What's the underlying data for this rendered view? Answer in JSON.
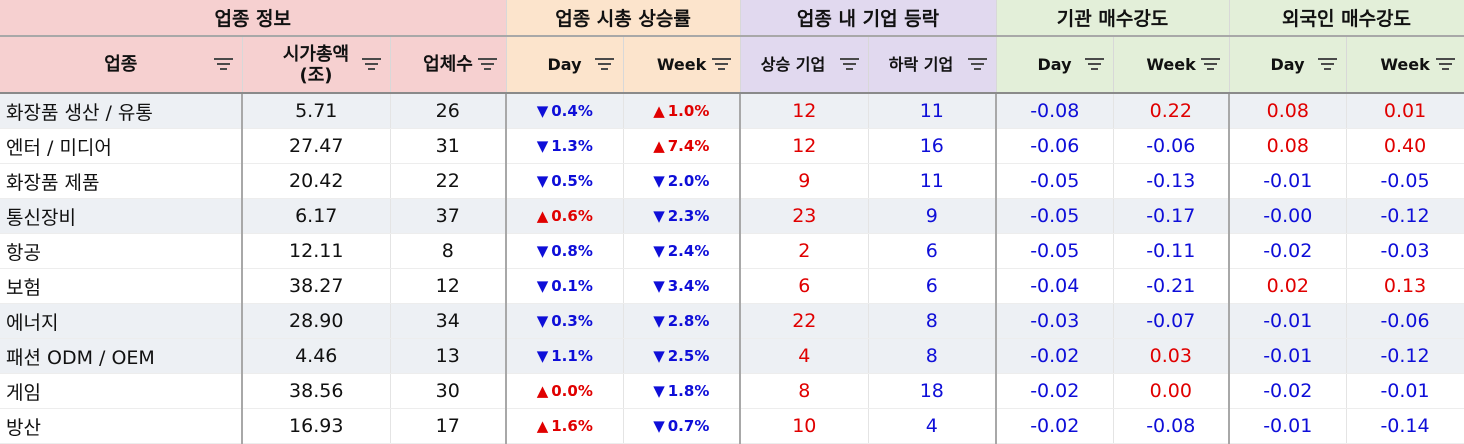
{
  "groups": {
    "sector_info": "업종 정보",
    "market_cap_rise": "업종 시총 상승률",
    "company_movement": "업종 내 기업 등락",
    "inst_strength": "기관 매수강도",
    "foreign_strength": "외국인 매수강도"
  },
  "columns": {
    "sector": "업종",
    "market_cap_line1": "시가총액",
    "market_cap_line2": "(조)",
    "company_count": "업체수",
    "cap_day": "Day",
    "cap_week": "Week",
    "rising": "상승 기업",
    "falling": "하락 기업",
    "inst_day": "Day",
    "inst_week": "Week",
    "for_day": "Day",
    "for_week": "Week"
  },
  "icons": {
    "filter": "filter-icon",
    "up": "triangle-up-icon",
    "down": "triangle-down-icon"
  },
  "colors": {
    "group_sector": "#f6d0d0",
    "group_cap": "#fce4cc",
    "group_movement": "#e1d9ef",
    "group_strength": "#e3efd9",
    "positive": "#e00000",
    "negative": "#0e0ed8",
    "row_shade": "#edf0f4"
  },
  "rows": [
    {
      "sector": "화장품 생산 / 유통",
      "market_cap": "5.71",
      "count": "26",
      "cap_day": {
        "dir": "down",
        "value": "0.4%"
      },
      "cap_week": {
        "dir": "up",
        "value": "1.0%"
      },
      "rising": "12",
      "falling": "11",
      "inst_day": "-0.08",
      "inst_week": "0.22",
      "for_day": "0.08",
      "for_week": "0.01"
    },
    {
      "sector": "엔터 / 미디어",
      "market_cap": "27.47",
      "count": "31",
      "cap_day": {
        "dir": "down",
        "value": "1.3%"
      },
      "cap_week": {
        "dir": "up",
        "value": "7.4%"
      },
      "rising": "12",
      "falling": "16",
      "inst_day": "-0.06",
      "inst_week": "-0.06",
      "for_day": "0.08",
      "for_week": "0.40"
    },
    {
      "sector": "화장품 제품",
      "market_cap": "20.42",
      "count": "22",
      "cap_day": {
        "dir": "down",
        "value": "0.5%"
      },
      "cap_week": {
        "dir": "down",
        "value": "2.0%"
      },
      "rising": "9",
      "falling": "11",
      "inst_day": "-0.05",
      "inst_week": "-0.13",
      "for_day": "-0.01",
      "for_week": "-0.05"
    },
    {
      "sector": "통신장비",
      "market_cap": "6.17",
      "count": "37",
      "cap_day": {
        "dir": "up",
        "value": "0.6%"
      },
      "cap_week": {
        "dir": "down",
        "value": "2.3%"
      },
      "rising": "23",
      "falling": "9",
      "inst_day": "-0.05",
      "inst_week": "-0.17",
      "for_day": "-0.00",
      "for_week": "-0.12"
    },
    {
      "sector": "항공",
      "market_cap": "12.11",
      "count": "8",
      "cap_day": {
        "dir": "down",
        "value": "0.8%"
      },
      "cap_week": {
        "dir": "down",
        "value": "2.4%"
      },
      "rising": "2",
      "falling": "6",
      "inst_day": "-0.05",
      "inst_week": "-0.11",
      "for_day": "-0.02",
      "for_week": "-0.03"
    },
    {
      "sector": "보험",
      "market_cap": "38.27",
      "count": "12",
      "cap_day": {
        "dir": "down",
        "value": "0.1%"
      },
      "cap_week": {
        "dir": "down",
        "value": "3.4%"
      },
      "rising": "6",
      "falling": "6",
      "inst_day": "-0.04",
      "inst_week": "-0.21",
      "for_day": "0.02",
      "for_week": "0.13"
    },
    {
      "sector": "에너지",
      "market_cap": "28.90",
      "count": "34",
      "cap_day": {
        "dir": "down",
        "value": "0.3%"
      },
      "cap_week": {
        "dir": "down",
        "value": "2.8%"
      },
      "rising": "22",
      "falling": "8",
      "inst_day": "-0.03",
      "inst_week": "-0.07",
      "for_day": "-0.01",
      "for_week": "-0.06"
    },
    {
      "sector": "패션 ODM / OEM",
      "market_cap": "4.46",
      "count": "13",
      "cap_day": {
        "dir": "down",
        "value": "1.1%"
      },
      "cap_week": {
        "dir": "down",
        "value": "2.5%"
      },
      "rising": "4",
      "falling": "8",
      "inst_day": "-0.02",
      "inst_week": "0.03",
      "for_day": "-0.01",
      "for_week": "-0.12"
    },
    {
      "sector": "게임",
      "market_cap": "38.56",
      "count": "30",
      "cap_day": {
        "dir": "up",
        "value": "0.0%"
      },
      "cap_week": {
        "dir": "down",
        "value": "1.8%"
      },
      "rising": "8",
      "falling": "18",
      "inst_day": "-0.02",
      "inst_week": "0.00",
      "for_day": "-0.02",
      "for_week": "-0.01"
    },
    {
      "sector": "방산",
      "market_cap": "16.93",
      "count": "17",
      "cap_day": {
        "dir": "up",
        "value": "1.6%"
      },
      "cap_week": {
        "dir": "down",
        "value": "0.7%"
      },
      "rising": "10",
      "falling": "4",
      "inst_day": "-0.02",
      "inst_week": "-0.08",
      "for_day": "-0.01",
      "for_week": "-0.14"
    }
  ]
}
